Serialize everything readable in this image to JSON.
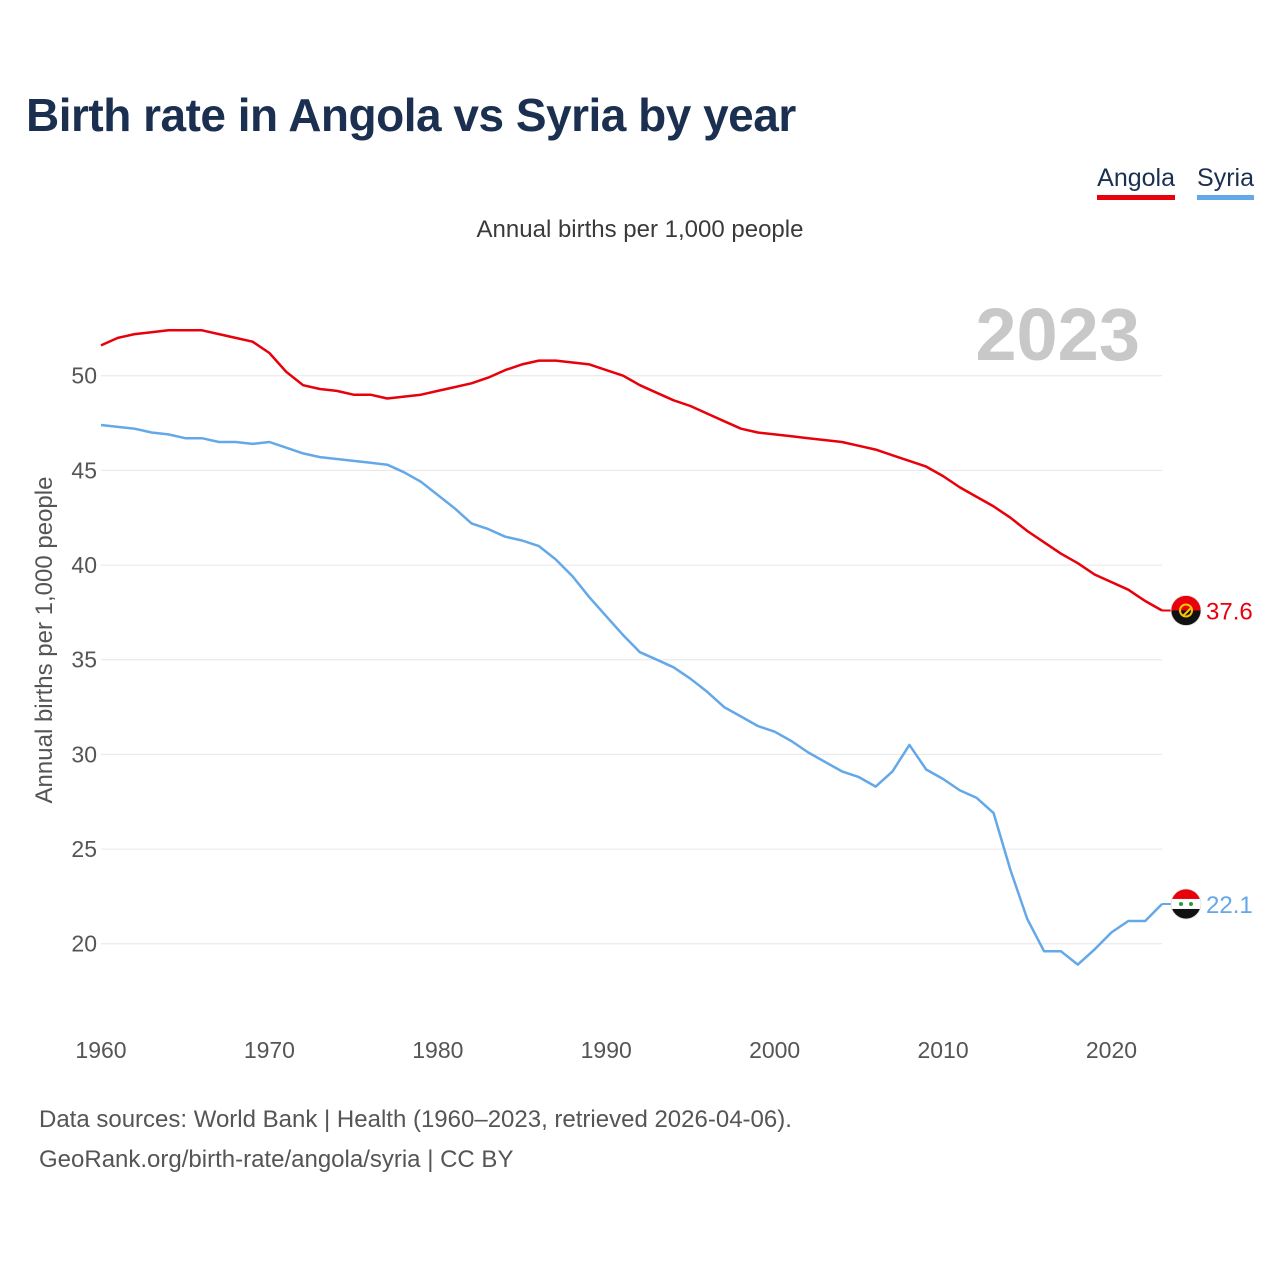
{
  "title": "Birth rate in Angola vs Syria by year",
  "legend": {
    "angola": "Angola",
    "syria": "Syria"
  },
  "colors": {
    "angola": "#e8000b",
    "syria": "#64a8e8",
    "grid": "#e6e6e6",
    "tick": "#555555",
    "year": "#c8c8c8"
  },
  "footer": {
    "line1": "Data sources: World Bank | Health (1960–2023, retrieved 2026-04-06).",
    "line2": "GeoRank.org/birth-rate/angola/syria | CC BY"
  },
  "chart_data": {
    "type": "line",
    "title": "Birth rate in Angola vs Syria by year",
    "subtitle": "Annual births per 1,000 people",
    "ylabel": "Annual births per 1,000 people",
    "xlabel": "",
    "year_label": "2023",
    "xlim": [
      1960,
      2023
    ],
    "ylim": [
      16.5,
      54
    ],
    "x_ticks": [
      1960,
      1970,
      1980,
      1990,
      2000,
      2010,
      2020
    ],
    "y_ticks": [
      20,
      25,
      30,
      35,
      40,
      45,
      50
    ],
    "grid": true,
    "legend_position": "top-right",
    "x": [
      1960,
      1961,
      1962,
      1963,
      1964,
      1965,
      1966,
      1967,
      1968,
      1969,
      1970,
      1971,
      1972,
      1973,
      1974,
      1975,
      1976,
      1977,
      1978,
      1979,
      1980,
      1981,
      1982,
      1983,
      1984,
      1985,
      1986,
      1987,
      1988,
      1989,
      1990,
      1991,
      1992,
      1993,
      1994,
      1995,
      1996,
      1997,
      1998,
      1999,
      2000,
      2001,
      2002,
      2003,
      2004,
      2005,
      2006,
      2007,
      2008,
      2009,
      2010,
      2011,
      2012,
      2013,
      2014,
      2015,
      2016,
      2017,
      2018,
      2019,
      2020,
      2021,
      2022,
      2023
    ],
    "series": [
      {
        "name": "Angola",
        "end_label": "37.6",
        "values": [
          51.6,
          52.0,
          52.2,
          52.3,
          52.4,
          52.4,
          52.4,
          52.2,
          52.0,
          51.8,
          51.2,
          50.2,
          49.5,
          49.3,
          49.2,
          49.0,
          49.0,
          48.8,
          48.9,
          49.0,
          49.2,
          49.4,
          49.6,
          49.9,
          50.3,
          50.6,
          50.8,
          50.8,
          50.7,
          50.6,
          50.3,
          50.0,
          49.5,
          49.1,
          48.7,
          48.4,
          48.0,
          47.6,
          47.2,
          47.0,
          46.9,
          46.8,
          46.7,
          46.6,
          46.5,
          46.3,
          46.1,
          45.8,
          45.5,
          45.2,
          44.7,
          44.1,
          43.6,
          43.1,
          42.5,
          41.8,
          41.2,
          40.6,
          40.1,
          39.5,
          39.1,
          38.7,
          38.1,
          37.6
        ]
      },
      {
        "name": "Syria",
        "end_label": "22.1",
        "values": [
          47.4,
          47.3,
          47.2,
          47.0,
          46.9,
          46.7,
          46.7,
          46.5,
          46.5,
          46.4,
          46.5,
          46.2,
          45.9,
          45.7,
          45.6,
          45.5,
          45.4,
          45.3,
          44.9,
          44.4,
          43.7,
          43.0,
          42.2,
          41.9,
          41.5,
          41.3,
          41.0,
          40.3,
          39.4,
          38.3,
          37.3,
          36.3,
          35.4,
          35.0,
          34.6,
          34.0,
          33.3,
          32.5,
          32.0,
          31.5,
          31.2,
          30.7,
          30.1,
          29.6,
          29.1,
          28.8,
          28.3,
          29.1,
          30.5,
          29.2,
          28.7,
          28.1,
          27.7,
          26.9,
          23.9,
          21.3,
          19.6,
          19.6,
          18.9,
          19.7,
          20.6,
          21.2,
          21.2,
          22.1
        ]
      }
    ]
  }
}
